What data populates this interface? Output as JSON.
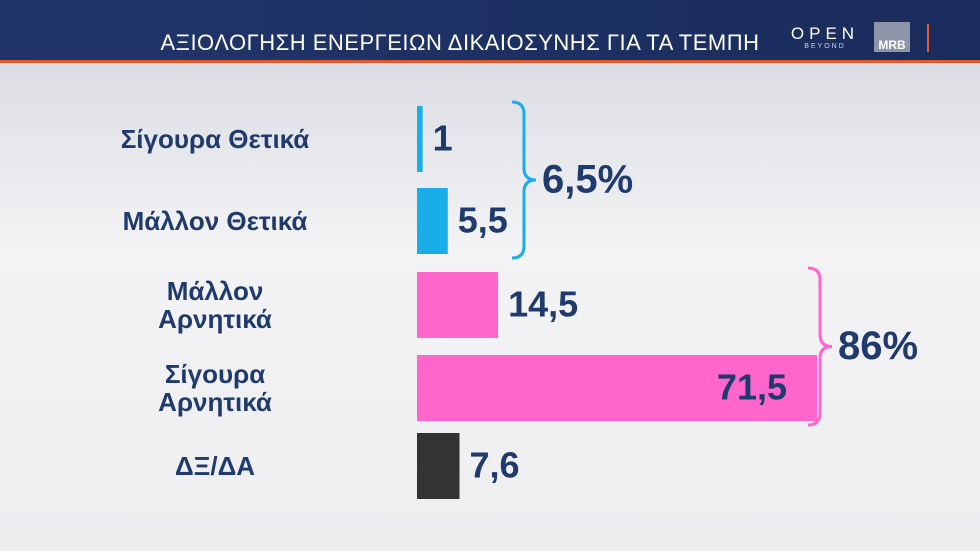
{
  "header": {
    "title": "ΑΞΙΟΛΟΓΗΣΗ ΕΝΕΡΓΕΙΩΝ ΔΙΚΑΙΟΣΥΝΗΣ ΓΙΑ ΤΑ ΤΕΜΠΗ",
    "logo": "OPEN",
    "logo_sub": "BEYOND",
    "logo2": "MRB"
  },
  "chart_data": {
    "type": "bar",
    "categories": [
      "Σίγουρα Θετικά",
      "Μάλλον Θετικά",
      "Μάλλον\nΑρνητικά",
      "Σίγουρα\nΑρνητικά",
      "ΔΞ/ΔΑ"
    ],
    "values": [
      1,
      5.5,
      14.5,
      71.5,
      7.6
    ],
    "value_labels": [
      "1",
      "5,5",
      "14,5",
      "71,5",
      "7,6"
    ],
    "colors": [
      "#19ade9",
      "#19ade9",
      "#ff66cc",
      "#ff66cc",
      "#333333"
    ],
    "groups": [
      {
        "value": 6.5,
        "value_label": "6,5%",
        "color": "#19ade9"
      },
      {
        "value": 86,
        "value_label": "86%",
        "color": "#ff66cc"
      }
    ]
  }
}
